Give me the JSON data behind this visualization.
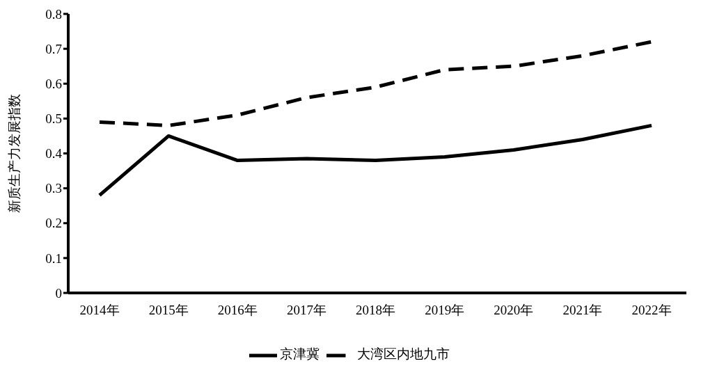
{
  "chart_data": {
    "type": "line",
    "ylabel": "新质生产力发展指数",
    "categories": [
      "2014年",
      "2015年",
      "2016年",
      "2017年",
      "2018年",
      "2019年",
      "2020年",
      "2021年",
      "2022年"
    ],
    "series": [
      {
        "name": "京津冀",
        "color": "#000000",
        "line_style": "solid",
        "values": [
          0.28,
          0.45,
          0.38,
          0.385,
          0.38,
          0.39,
          0.41,
          0.44,
          0.48
        ]
      },
      {
        "name": "大湾区内地九市",
        "color": "#000000",
        "line_style": "dashed",
        "values": [
          0.49,
          0.48,
          0.51,
          0.56,
          0.59,
          0.64,
          0.65,
          0.68,
          0.72
        ]
      }
    ],
    "ylim": [
      0,
      0.8
    ],
    "yticks": [
      0,
      0.1,
      0.2,
      0.3,
      0.4,
      0.5,
      0.6,
      0.7,
      0.8
    ],
    "grid": false,
    "legend": "bottom",
    "marker": "none"
  }
}
